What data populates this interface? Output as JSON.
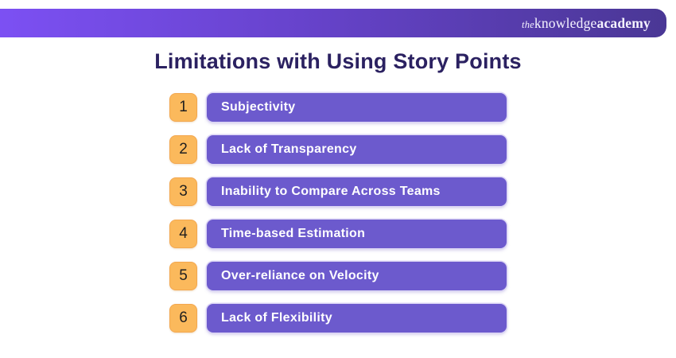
{
  "header": {
    "logo": {
      "the": "the",
      "knowledge": "knowledge",
      "academy": "academy"
    }
  },
  "title": "Limitations with Using Story Points",
  "items": [
    {
      "number": "1",
      "label": "Subjectivity"
    },
    {
      "number": "2",
      "label": "Lack of Transparency"
    },
    {
      "number": "3",
      "label": "Inability to Compare Across Teams"
    },
    {
      "number": "4",
      "label": "Time-based Estimation"
    },
    {
      "number": "5",
      "label": "Over-reliance on Velocity"
    },
    {
      "number": "6",
      "label": "Lack of Flexibility"
    }
  ],
  "colors": {
    "header_gradient_start": "#7C50F3",
    "header_gradient_end": "#4A3795",
    "title_text": "#2B2161",
    "number_box_bg": "#FBB95C",
    "number_box_border": "#F3A74F",
    "bar_bg": "#6C5ACD",
    "bar_outline": "#DCD6F5",
    "bar_text": "#FFFFFF"
  }
}
